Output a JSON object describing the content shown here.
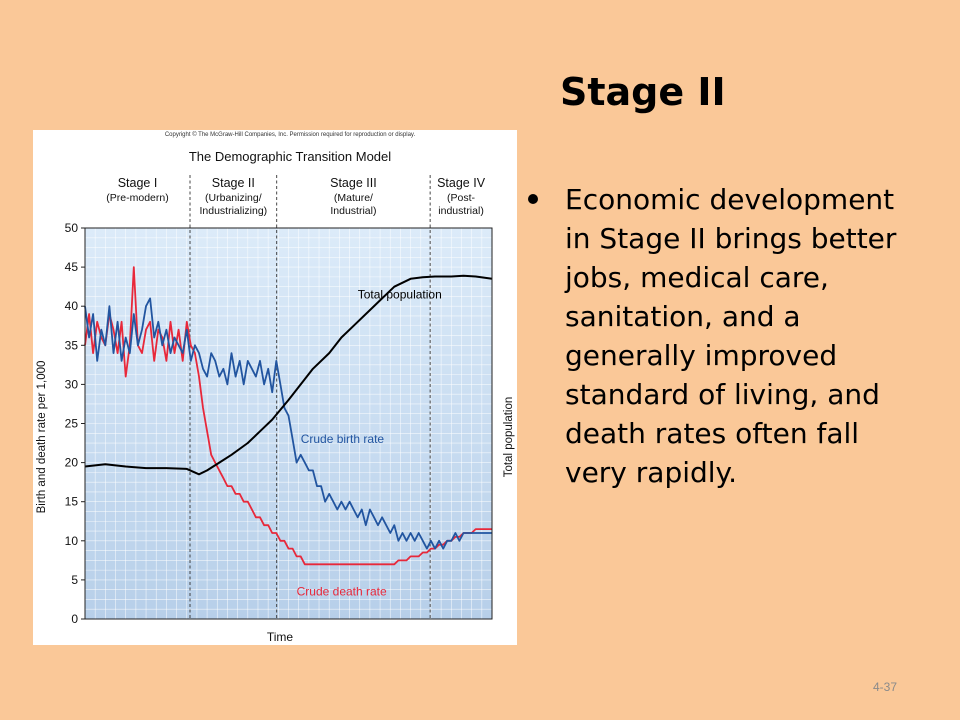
{
  "slide": {
    "title": "Stage II",
    "bullets": [
      "Economic development in Stage II brings better jobs, medical care, sanitation, and a generally improved standard of living, and death rates often fall very rapidly."
    ],
    "page_number": "4-37"
  },
  "figure": {
    "copyright": "Copyright © The McGraw-Hill Companies, Inc. Permission required for reproduction or display."
  },
  "chart_data": {
    "type": "line",
    "title": "The Demographic Transition Model",
    "xlabel": "Time",
    "ylabel": "Birth and death rate per 1,000",
    "ylabel_right": "Total population",
    "ylim": [
      0,
      50
    ],
    "yticks": [
      0,
      5,
      10,
      15,
      20,
      25,
      30,
      35,
      40,
      45,
      50
    ],
    "xlim": [
      0,
      100
    ],
    "grid": true,
    "colors": {
      "birth": "#2255a0",
      "death": "#e8283a",
      "population": "#000000",
      "plot_bg": "#cfe3f6"
    },
    "stages": [
      {
        "name": "Stage I",
        "sub": [
          "(Pre-modern)"
        ],
        "start": 0,
        "end": 25.8
      },
      {
        "name": "Stage II",
        "sub": [
          "(Urbanizing/",
          "Industrializing)"
        ],
        "start": 25.8,
        "end": 47.1
      },
      {
        "name": "Stage III",
        "sub": [
          "(Mature/",
          "Industrial)"
        ],
        "start": 47.1,
        "end": 84.8
      },
      {
        "name": "Stage IV",
        "sub": [
          "(Post-",
          "industrial)"
        ],
        "start": 84.8,
        "end": 100
      }
    ],
    "series": [
      {
        "name": "Crude birth rate",
        "x": [
          0,
          1,
          2,
          3,
          4,
          5,
          6,
          7,
          8,
          9,
          10,
          11,
          12,
          13,
          14,
          15,
          16,
          17,
          18,
          19,
          20,
          21,
          22,
          23,
          24,
          25,
          26,
          27,
          28,
          29,
          30,
          31,
          32,
          33,
          34,
          35,
          36,
          37,
          38,
          39,
          40,
          41,
          42,
          43,
          44,
          45,
          46,
          47,
          48,
          49,
          50,
          51,
          52,
          53,
          54,
          55,
          56,
          57,
          58,
          59,
          60,
          61,
          62,
          63,
          64,
          65,
          66,
          67,
          68,
          69,
          70,
          71,
          72,
          73,
          74,
          75,
          76,
          77,
          78,
          79,
          80,
          81,
          82,
          83,
          84,
          85,
          86,
          87,
          88,
          89,
          90,
          91,
          92,
          93,
          94,
          95,
          96,
          97,
          98,
          99,
          100
        ],
        "values": [
          40,
          36,
          39,
          33,
          37,
          35,
          40,
          34,
          38,
          33,
          36,
          34,
          39,
          35,
          37,
          40,
          41,
          36,
          38,
          35,
          37,
          34,
          36,
          35,
          34,
          37,
          33,
          35,
          34,
          32,
          31,
          34,
          33,
          31,
          32,
          30,
          34,
          31,
          33,
          30,
          33,
          32,
          31,
          33,
          30,
          32,
          29,
          33,
          30,
          27,
          26,
          23,
          20,
          21,
          20,
          19,
          19,
          17,
          17,
          15,
          16,
          15,
          14,
          15,
          14,
          15,
          14,
          13,
          14,
          12,
          14,
          13,
          12,
          13,
          12,
          11,
          12,
          10,
          11,
          10,
          11,
          10,
          11,
          10,
          9,
          10,
          9,
          10,
          9,
          10,
          10,
          11,
          10,
          11,
          11,
          11,
          11,
          11,
          11,
          11,
          11
        ]
      },
      {
        "name": "Crude death rate",
        "x": [
          0,
          1,
          2,
          3,
          4,
          5,
          6,
          7,
          8,
          9,
          10,
          11,
          12,
          13,
          14,
          15,
          16,
          17,
          18,
          19,
          20,
          21,
          22,
          23,
          24,
          25,
          26,
          27,
          28,
          29,
          30,
          31,
          32,
          33,
          34,
          35,
          36,
          37,
          38,
          39,
          40,
          41,
          42,
          43,
          44,
          45,
          46,
          47,
          48,
          49,
          50,
          51,
          52,
          53,
          54,
          55,
          56,
          57,
          58,
          59,
          60,
          61,
          62,
          63,
          64,
          65,
          66,
          67,
          68,
          69,
          70,
          71,
          72,
          73,
          74,
          75,
          76,
          77,
          78,
          79,
          80,
          81,
          82,
          83,
          84,
          85,
          86,
          87,
          88,
          89,
          90,
          91,
          92,
          93,
          94,
          95,
          96,
          97,
          98,
          99,
          100
        ],
        "values": [
          35,
          39,
          34,
          38,
          36,
          35,
          39,
          37,
          34,
          38,
          31,
          35,
          45,
          35,
          34,
          37,
          38,
          33,
          37,
          36,
          33,
          38,
          34,
          37,
          33,
          38,
          35,
          34,
          31,
          27,
          24,
          21,
          20,
          19,
          18,
          17,
          17,
          16,
          16,
          15,
          15,
          14,
          13,
          13,
          12,
          12,
          11,
          11,
          10,
          10,
          9,
          9,
          8,
          8,
          7,
          7,
          7,
          7,
          7,
          7,
          7,
          7,
          7,
          7,
          7,
          7,
          7,
          7,
          7,
          7,
          7,
          7,
          7,
          7,
          7,
          7,
          7,
          7.5,
          7.5,
          7.5,
          8,
          8,
          8,
          8.5,
          8.5,
          9,
          9,
          9.5,
          9.5,
          10,
          10,
          10.5,
          10.5,
          11,
          11,
          11,
          11.5,
          11.5,
          11.5,
          11.5,
          11.5
        ]
      },
      {
        "name": "Total population",
        "x": [
          0,
          5,
          10,
          15,
          20,
          25,
          28,
          30,
          33,
          36,
          40,
          43,
          46,
          50,
          53,
          56,
          60,
          63,
          66,
          70,
          73,
          76,
          80,
          83,
          86,
          90,
          93,
          96,
          100
        ],
        "values": [
          19.5,
          19.8,
          19.5,
          19.3,
          19.3,
          19.2,
          18.5,
          19,
          20,
          21,
          22.5,
          24,
          25.5,
          28,
          30,
          32,
          34,
          36,
          37.5,
          39.5,
          41,
          42.5,
          43.5,
          43.7,
          43.8,
          43.8,
          43.9,
          43.8,
          43.5
        ]
      }
    ]
  }
}
